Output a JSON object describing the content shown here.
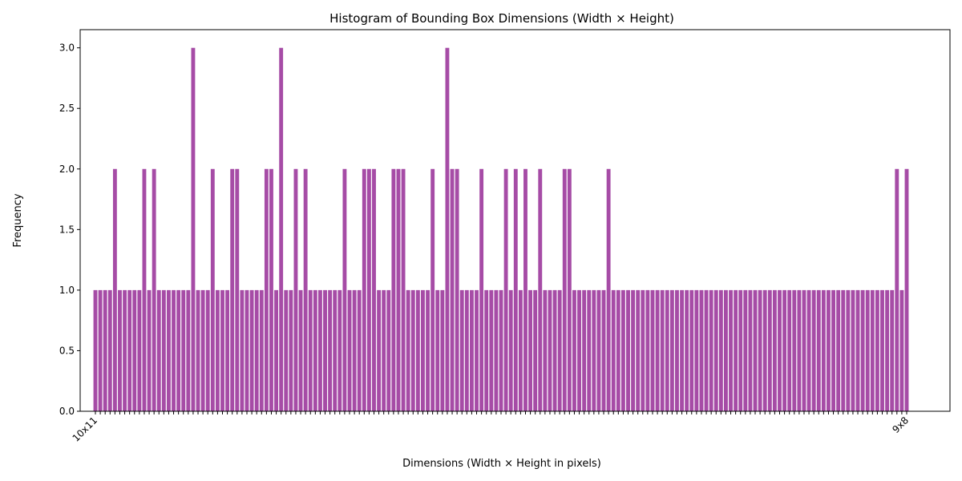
{
  "chart_data": {
    "type": "bar",
    "title": "Histogram of Bounding Box Dimensions (Width × Height)",
    "x_label": "Dimensions (Width × Height in pixels)",
    "y_label": "Frequency",
    "color": "#a64ca6",
    "categories": [
      "10x11",
      null,
      null,
      null,
      null,
      null,
      null,
      null,
      null,
      null,
      null,
      null,
      null,
      null,
      null,
      null,
      null,
      null,
      null,
      null,
      null,
      null,
      null,
      null,
      null,
      null,
      null,
      null,
      null,
      null,
      null,
      null,
      null,
      null,
      null,
      null,
      null,
      null,
      null,
      null,
      null,
      null,
      null,
      null,
      null,
      null,
      null,
      null,
      null,
      null,
      null,
      null,
      null,
      null,
      null,
      null,
      null,
      null,
      null,
      null,
      null,
      null,
      null,
      null,
      null,
      null,
      null,
      null,
      null,
      null,
      null,
      null,
      null,
      null,
      null,
      null,
      null,
      null,
      null,
      null,
      null,
      null,
      null,
      null,
      null,
      null,
      null,
      null,
      null,
      null,
      null,
      null,
      null,
      null,
      null,
      null,
      null,
      null,
      null,
      null,
      null,
      null,
      null,
      null,
      null,
      null,
      null,
      null,
      null,
      null,
      null,
      null,
      null,
      null,
      null,
      null,
      null,
      null,
      null,
      null,
      null,
      null,
      null,
      null,
      null,
      null,
      null,
      null,
      null,
      null,
      null,
      null,
      null,
      null,
      null,
      null,
      null,
      null,
      null,
      null,
      null,
      null,
      null,
      null,
      null,
      null,
      null,
      null,
      null,
      null,
      null,
      null,
      null,
      null,
      null,
      null,
      null,
      null,
      null,
      null,
      null,
      null,
      null,
      null,
      null,
      null,
      "9x8"
    ],
    "values": [
      1,
      1,
      1,
      1,
      2,
      1,
      1,
      1,
      1,
      1,
      2,
      1,
      2,
      1,
      1,
      1,
      1,
      1,
      1,
      1,
      3,
      1,
      1,
      1,
      2,
      1,
      1,
      1,
      2,
      2,
      1,
      1,
      1,
      1,
      1,
      2,
      2,
      1,
      3,
      1,
      1,
      2,
      1,
      2,
      1,
      1,
      1,
      1,
      1,
      1,
      1,
      2,
      1,
      1,
      1,
      2,
      2,
      2,
      1,
      1,
      1,
      2,
      2,
      2,
      1,
      1,
      1,
      1,
      1,
      2,
      1,
      1,
      3,
      2,
      2,
      1,
      1,
      1,
      1,
      2,
      1,
      1,
      1,
      1,
      2,
      1,
      2,
      1,
      2,
      1,
      1,
      2,
      1,
      1,
      1,
      1,
      2,
      2,
      1,
      1,
      1,
      1,
      1,
      1,
      1,
      2,
      1,
      1,
      1,
      1,
      1,
      1,
      1,
      1,
      1,
      1,
      1,
      1,
      1,
      1,
      1,
      1,
      1,
      1,
      1,
      1,
      1,
      1,
      1,
      1,
      1,
      1,
      1,
      1,
      1,
      1,
      1,
      1,
      1,
      1,
      1,
      1,
      1,
      1,
      1,
      1,
      1,
      1,
      1,
      1,
      1,
      1,
      1,
      1,
      1,
      1,
      1,
      1,
      1,
      1,
      1,
      1,
      1,
      1,
      2,
      1,
      2
    ],
    "ylim": [
      0,
      3.15
    ],
    "yticks": [
      {
        "value": 0,
        "label": "0.0"
      },
      {
        "value": 0.5,
        "label": "0.5"
      },
      {
        "value": 1,
        "label": "1.0"
      },
      {
        "value": 1.5,
        "label": "1.5"
      },
      {
        "value": 2,
        "label": "2.0"
      },
      {
        "value": 2.5,
        "label": "2.5"
      },
      {
        "value": 3,
        "label": "3.0"
      }
    ]
  }
}
